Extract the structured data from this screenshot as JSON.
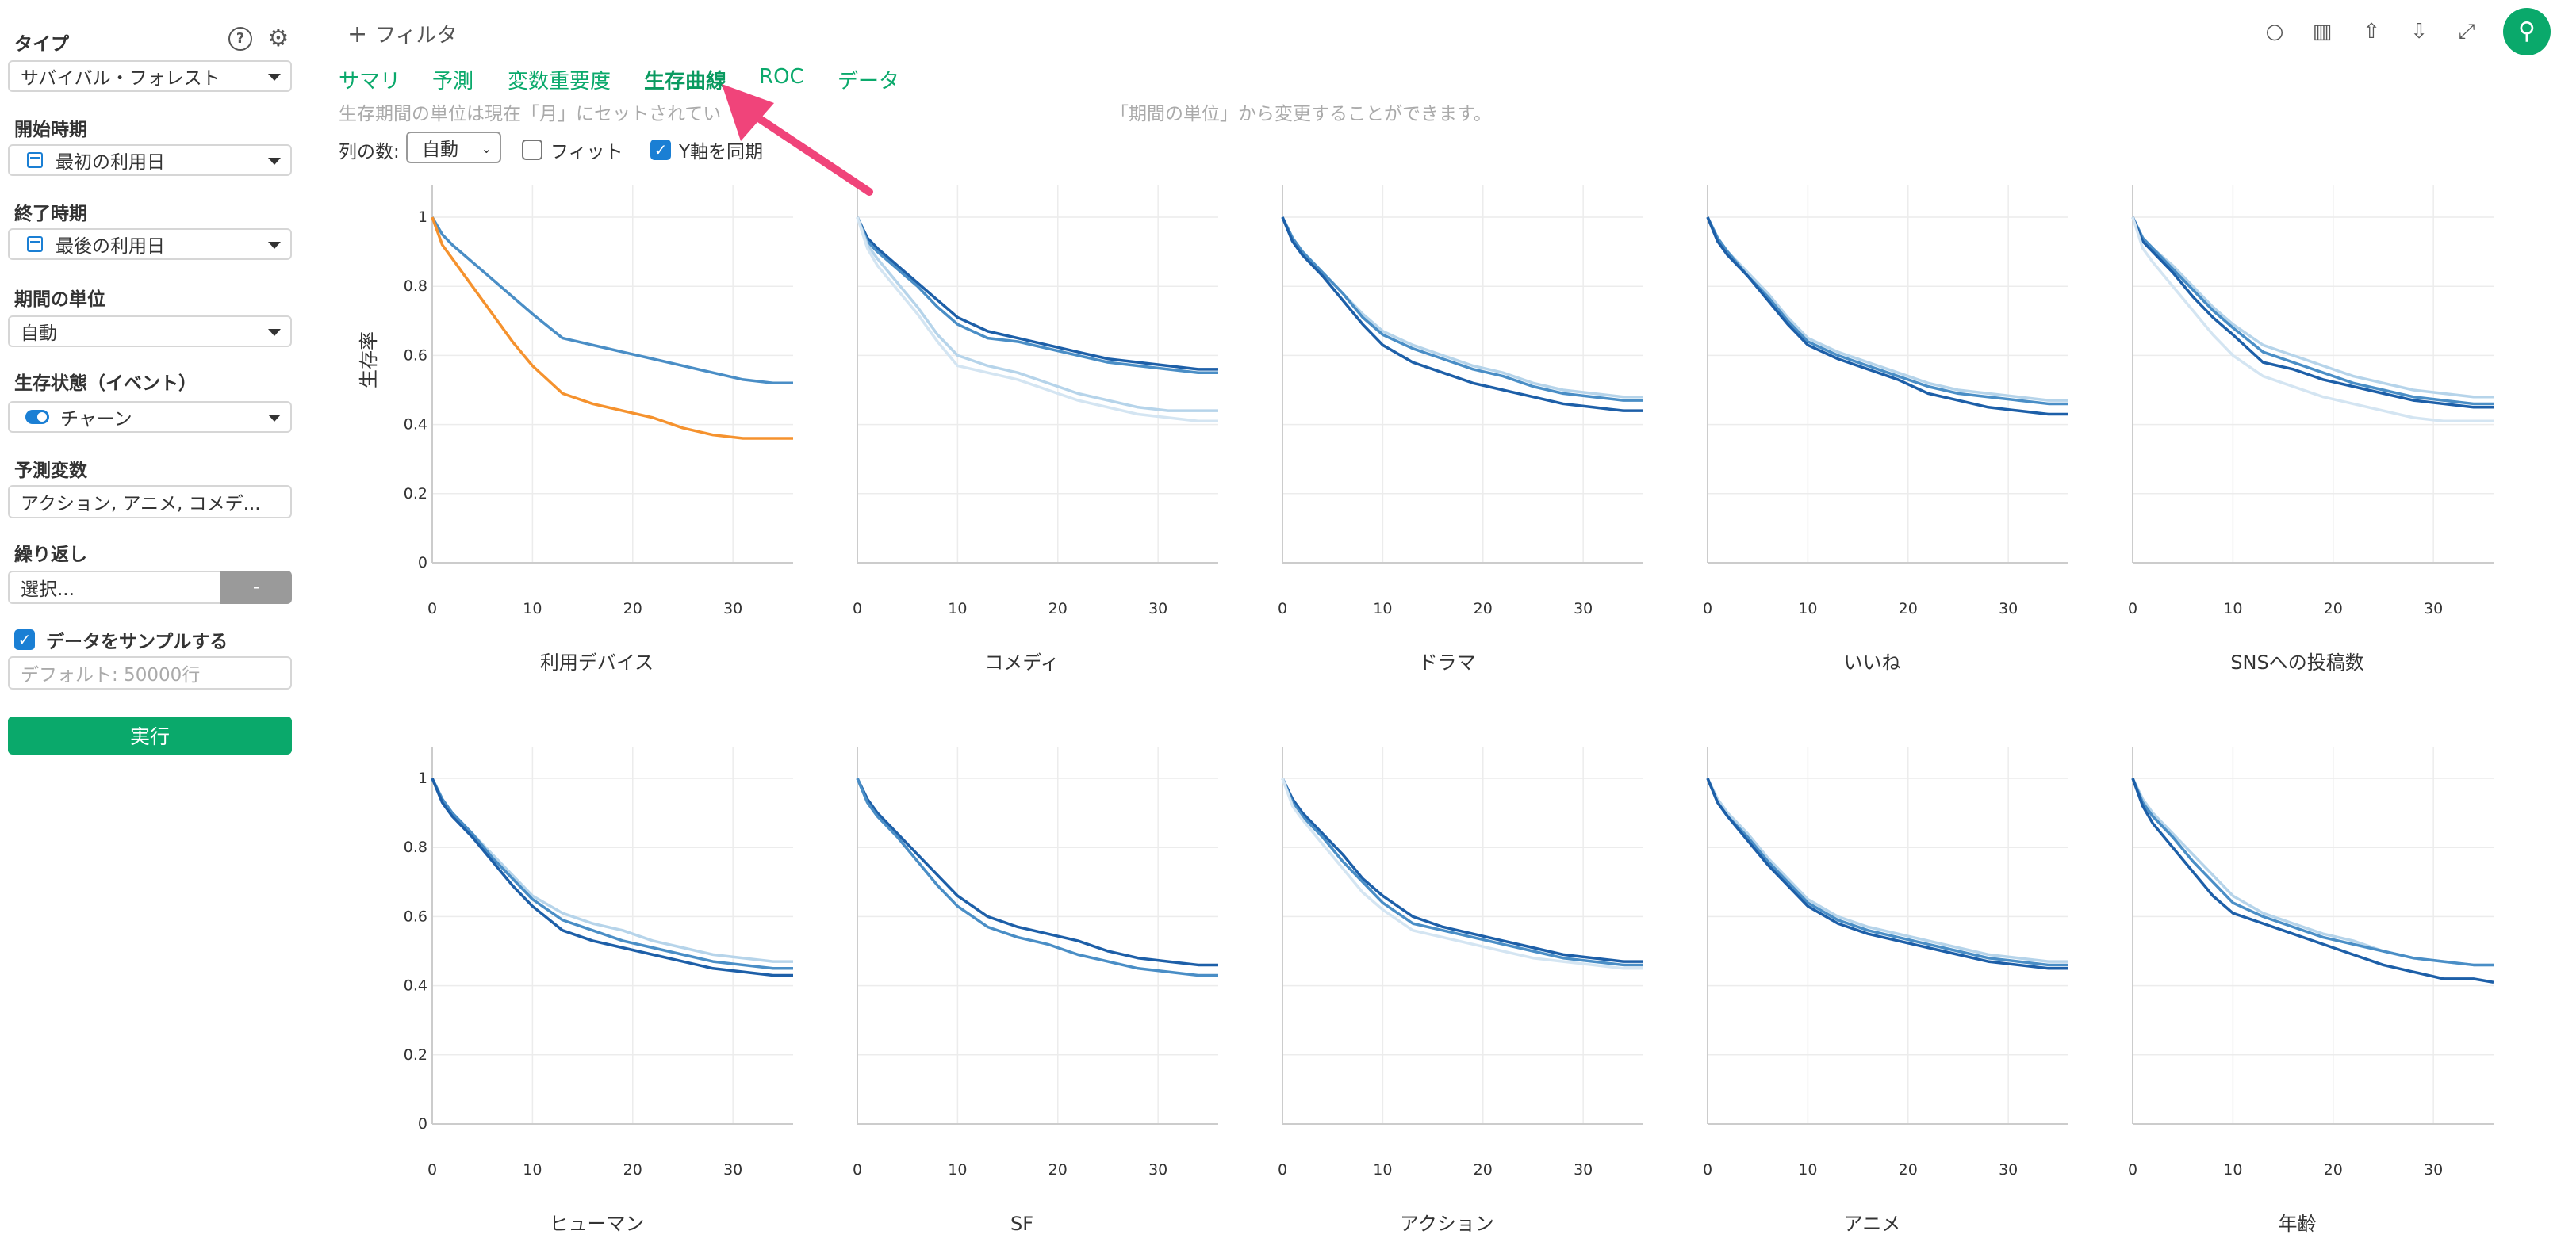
{
  "sidebar": {
    "type_label": "タイプ",
    "type_value": "サバイバル・フォレスト",
    "start_label": "開始時期",
    "start_value": "最初の利用日",
    "end_label": "終了時期",
    "end_value": "最後の利用日",
    "unit_label": "期間の単位",
    "unit_value": "自動",
    "status_label": "生存状態（イベント）",
    "status_value": "チャーン",
    "predictors_label": "予測変数",
    "predictors_value": "アクション, アニメ, コメデ...",
    "repeat_label": "繰り返し",
    "repeat_value": "選択...",
    "repeat_btn": "-",
    "sample_label": "データをサンプルする",
    "sample_placeholder": "デフォルト: 50000行",
    "run_label": "実行",
    "help_icon": "?",
    "gear_icon": "⚙"
  },
  "header": {
    "filter_label": "フィルタ",
    "filter_icon": "+"
  },
  "tabs": [
    "サマリ",
    "予測",
    "変数重要度",
    "生存曲線",
    "ROC",
    "データ"
  ],
  "active_tab": "生存曲線",
  "info_text": "生存期間の単位は現在「月」にセットされてい",
  "info_text2": "「期間の単位」から変更することができます。",
  "options": {
    "columns_label": "列の数:",
    "columns_value": "自動",
    "fit_label": "フィット",
    "sync_label": "Y軸を同期"
  },
  "ylabel": "生存率",
  "colors": {
    "accent": "#0aa96b",
    "pin": "#0aa96b",
    "arrow": "#f0447a",
    "blue_dark": "#1d5fa8",
    "blue_mid": "#4a8ec6",
    "blue_light": "#b6d4ea",
    "blue_lighter": "#d4e5f2",
    "orange": "#f5922e"
  },
  "chart_data": [
    {
      "type": "line",
      "title": "利用デバイス",
      "x": [
        0,
        1,
        2,
        4,
        6,
        8,
        10,
        13,
        16,
        19,
        22,
        25,
        28,
        31,
        34,
        36
      ],
      "xlim": [
        0,
        36
      ],
      "ylim": [
        0,
        1
      ],
      "xticks": [
        0,
        10,
        20,
        30
      ],
      "yticks": [
        0,
        0.2,
        0.4,
        0.6,
        0.8,
        1
      ],
      "series": [
        {
          "color": "#4a8ec6",
          "values": [
            1,
            0.95,
            0.92,
            0.87,
            0.82,
            0.77,
            0.72,
            0.65,
            0.63,
            0.61,
            0.59,
            0.57,
            0.55,
            0.53,
            0.52,
            0.52
          ]
        },
        {
          "color": "#f5922e",
          "values": [
            1,
            0.92,
            0.88,
            0.8,
            0.72,
            0.64,
            0.57,
            0.49,
            0.46,
            0.44,
            0.42,
            0.39,
            0.37,
            0.36,
            0.36,
            0.36
          ]
        }
      ]
    },
    {
      "type": "line",
      "title": "コメディ",
      "x": [
        0,
        1,
        2,
        4,
        6,
        8,
        10,
        13,
        16,
        19,
        22,
        25,
        28,
        31,
        34,
        36
      ],
      "xlim": [
        0,
        36
      ],
      "ylim": [
        0,
        1
      ],
      "xticks": [
        0,
        10,
        20,
        30
      ],
      "yticks": [
        0,
        0.2,
        0.4,
        0.6,
        0.8,
        1
      ],
      "series": [
        {
          "color": "#1d5fa8",
          "values": [
            1,
            0.94,
            0.91,
            0.86,
            0.81,
            0.76,
            0.71,
            0.67,
            0.65,
            0.63,
            0.61,
            0.59,
            0.58,
            0.57,
            0.56,
            0.56
          ]
        },
        {
          "color": "#4a8ec6",
          "values": [
            1,
            0.93,
            0.9,
            0.85,
            0.8,
            0.74,
            0.69,
            0.65,
            0.64,
            0.62,
            0.6,
            0.58,
            0.57,
            0.56,
            0.55,
            0.55
          ]
        },
        {
          "color": "#b6d4ea",
          "values": [
            1,
            0.92,
            0.88,
            0.81,
            0.74,
            0.66,
            0.6,
            0.57,
            0.55,
            0.52,
            0.49,
            0.47,
            0.45,
            0.44,
            0.44,
            0.44
          ]
        },
        {
          "color": "#d4e5f2",
          "values": [
            1,
            0.91,
            0.86,
            0.79,
            0.72,
            0.64,
            0.57,
            0.55,
            0.53,
            0.5,
            0.47,
            0.45,
            0.43,
            0.42,
            0.41,
            0.41
          ]
        }
      ]
    },
    {
      "type": "line",
      "title": "ドラマ",
      "x": [
        0,
        1,
        2,
        4,
        6,
        8,
        10,
        13,
        16,
        19,
        22,
        25,
        28,
        31,
        34,
        36
      ],
      "xlim": [
        0,
        36
      ],
      "ylim": [
        0,
        1
      ],
      "xticks": [
        0,
        10,
        20,
        30
      ],
      "yticks": [
        0,
        0.2,
        0.4,
        0.6,
        0.8,
        1
      ],
      "series": [
        {
          "color": "#b6d4ea",
          "values": [
            1,
            0.94,
            0.9,
            0.84,
            0.78,
            0.72,
            0.67,
            0.63,
            0.6,
            0.57,
            0.55,
            0.52,
            0.5,
            0.49,
            0.48,
            0.48
          ]
        },
        {
          "color": "#4a8ec6",
          "values": [
            1,
            0.94,
            0.9,
            0.84,
            0.78,
            0.71,
            0.66,
            0.62,
            0.59,
            0.56,
            0.54,
            0.51,
            0.49,
            0.48,
            0.47,
            0.47
          ]
        },
        {
          "color": "#1d5fa8",
          "values": [
            1,
            0.93,
            0.89,
            0.83,
            0.76,
            0.69,
            0.63,
            0.58,
            0.55,
            0.52,
            0.5,
            0.48,
            0.46,
            0.45,
            0.44,
            0.44
          ]
        }
      ]
    },
    {
      "type": "line",
      "title": "いいね",
      "x": [
        0,
        1,
        2,
        4,
        6,
        8,
        10,
        13,
        16,
        19,
        22,
        25,
        28,
        31,
        34,
        36
      ],
      "xlim": [
        0,
        36
      ],
      "ylim": [
        0,
        1
      ],
      "xticks": [
        0,
        10,
        20,
        30
      ],
      "yticks": [
        0,
        0.2,
        0.4,
        0.6,
        0.8,
        1
      ],
      "series": [
        {
          "color": "#b6d4ea",
          "values": [
            1,
            0.94,
            0.9,
            0.84,
            0.78,
            0.71,
            0.65,
            0.61,
            0.58,
            0.55,
            0.52,
            0.5,
            0.49,
            0.48,
            0.47,
            0.47
          ]
        },
        {
          "color": "#4a8ec6",
          "values": [
            1,
            0.94,
            0.9,
            0.83,
            0.77,
            0.7,
            0.64,
            0.6,
            0.57,
            0.54,
            0.51,
            0.49,
            0.48,
            0.47,
            0.46,
            0.46
          ]
        },
        {
          "color": "#1d5fa8",
          "values": [
            1,
            0.93,
            0.89,
            0.83,
            0.76,
            0.69,
            0.63,
            0.59,
            0.56,
            0.53,
            0.49,
            0.47,
            0.45,
            0.44,
            0.43,
            0.43
          ]
        }
      ]
    },
    {
      "type": "line",
      "title": "SNSへの投稿数",
      "x": [
        0,
        1,
        2,
        4,
        6,
        8,
        10,
        13,
        16,
        19,
        22,
        25,
        28,
        31,
        34,
        36
      ],
      "xlim": [
        0,
        36
      ],
      "ylim": [
        0,
        1
      ],
      "xticks": [
        0,
        10,
        20,
        30
      ],
      "yticks": [
        0,
        0.2,
        0.4,
        0.6,
        0.8,
        1
      ],
      "series": [
        {
          "color": "#b6d4ea",
          "values": [
            1,
            0.94,
            0.91,
            0.86,
            0.8,
            0.74,
            0.69,
            0.63,
            0.6,
            0.57,
            0.54,
            0.52,
            0.5,
            0.49,
            0.48,
            0.48
          ]
        },
        {
          "color": "#4a8ec6",
          "values": [
            1,
            0.94,
            0.91,
            0.85,
            0.79,
            0.73,
            0.68,
            0.61,
            0.58,
            0.55,
            0.52,
            0.5,
            0.48,
            0.47,
            0.46,
            0.46
          ]
        },
        {
          "color": "#1d5fa8",
          "values": [
            1,
            0.93,
            0.9,
            0.84,
            0.77,
            0.71,
            0.66,
            0.58,
            0.56,
            0.53,
            0.51,
            0.49,
            0.47,
            0.46,
            0.45,
            0.45
          ]
        },
        {
          "color": "#d4e5f2",
          "values": [
            1,
            0.91,
            0.87,
            0.8,
            0.73,
            0.66,
            0.6,
            0.54,
            0.51,
            0.48,
            0.46,
            0.44,
            0.42,
            0.41,
            0.41,
            0.41
          ]
        }
      ]
    },
    {
      "type": "line",
      "title": "ヒューマン",
      "x": [
        0,
        1,
        2,
        4,
        6,
        8,
        10,
        13,
        16,
        19,
        22,
        25,
        28,
        31,
        34,
        36
      ],
      "xlim": [
        0,
        36
      ],
      "ylim": [
        0,
        1
      ],
      "xticks": [
        0,
        10,
        20,
        30
      ],
      "yticks": [
        0,
        0.2,
        0.4,
        0.6,
        0.8,
        1
      ],
      "series": [
        {
          "color": "#b6d4ea",
          "values": [
            1,
            0.94,
            0.9,
            0.84,
            0.78,
            0.72,
            0.66,
            0.61,
            0.58,
            0.56,
            0.53,
            0.51,
            0.49,
            0.48,
            0.47,
            0.47
          ]
        },
        {
          "color": "#4a8ec6",
          "values": [
            1,
            0.94,
            0.9,
            0.84,
            0.77,
            0.71,
            0.65,
            0.59,
            0.56,
            0.53,
            0.51,
            0.49,
            0.47,
            0.46,
            0.45,
            0.45
          ]
        },
        {
          "color": "#1d5fa8",
          "values": [
            1,
            0.93,
            0.89,
            0.83,
            0.76,
            0.69,
            0.63,
            0.56,
            0.53,
            0.51,
            0.49,
            0.47,
            0.45,
            0.44,
            0.43,
            0.43
          ]
        }
      ]
    },
    {
      "type": "line",
      "title": "SF",
      "x": [
        0,
        1,
        2,
        4,
        6,
        8,
        10,
        13,
        16,
        19,
        22,
        25,
        28,
        31,
        34,
        36
      ],
      "xlim": [
        0,
        36
      ],
      "ylim": [
        0,
        1
      ],
      "xticks": [
        0,
        10,
        20,
        30
      ],
      "yticks": [
        0,
        0.2,
        0.4,
        0.6,
        0.8,
        1
      ],
      "series": [
        {
          "color": "#1d5fa8",
          "values": [
            1,
            0.94,
            0.9,
            0.84,
            0.78,
            0.72,
            0.66,
            0.6,
            0.57,
            0.55,
            0.53,
            0.5,
            0.48,
            0.47,
            0.46,
            0.46
          ]
        },
        {
          "color": "#4a8ec6",
          "values": [
            1,
            0.93,
            0.89,
            0.83,
            0.76,
            0.69,
            0.63,
            0.57,
            0.54,
            0.52,
            0.49,
            0.47,
            0.45,
            0.44,
            0.43,
            0.43
          ]
        }
      ]
    },
    {
      "type": "line",
      "title": "アクション",
      "x": [
        0,
        1,
        2,
        4,
        6,
        8,
        10,
        13,
        16,
        19,
        22,
        25,
        28,
        31,
        34,
        36
      ],
      "xlim": [
        0,
        36
      ],
      "ylim": [
        0,
        1
      ],
      "xticks": [
        0,
        10,
        20,
        30
      ],
      "yticks": [
        0,
        0.2,
        0.4,
        0.6,
        0.8,
        1
      ],
      "series": [
        {
          "color": "#1d5fa8",
          "values": [
            1,
            0.94,
            0.9,
            0.84,
            0.78,
            0.71,
            0.66,
            0.6,
            0.57,
            0.55,
            0.53,
            0.51,
            0.49,
            0.48,
            0.47,
            0.47
          ]
        },
        {
          "color": "#4a8ec6",
          "values": [
            1,
            0.93,
            0.89,
            0.83,
            0.76,
            0.7,
            0.64,
            0.58,
            0.56,
            0.54,
            0.52,
            0.5,
            0.48,
            0.47,
            0.46,
            0.46
          ]
        },
        {
          "color": "#d4e5f2",
          "values": [
            1,
            0.92,
            0.88,
            0.81,
            0.74,
            0.67,
            0.62,
            0.56,
            0.54,
            0.52,
            0.5,
            0.48,
            0.47,
            0.46,
            0.45,
            0.45
          ]
        }
      ]
    },
    {
      "type": "line",
      "title": "アニメ",
      "x": [
        0,
        1,
        2,
        4,
        6,
        8,
        10,
        13,
        16,
        19,
        22,
        25,
        28,
        31,
        34,
        36
      ],
      "xlim": [
        0,
        36
      ],
      "ylim": [
        0,
        1
      ],
      "xticks": [
        0,
        10,
        20,
        30
      ],
      "yticks": [
        0,
        0.2,
        0.4,
        0.6,
        0.8,
        1
      ],
      "series": [
        {
          "color": "#b6d4ea",
          "values": [
            1,
            0.94,
            0.9,
            0.84,
            0.77,
            0.71,
            0.65,
            0.6,
            0.57,
            0.55,
            0.53,
            0.51,
            0.49,
            0.48,
            0.47,
            0.47
          ]
        },
        {
          "color": "#4a8ec6",
          "values": [
            1,
            0.93,
            0.89,
            0.83,
            0.76,
            0.7,
            0.64,
            0.59,
            0.56,
            0.54,
            0.52,
            0.5,
            0.48,
            0.47,
            0.46,
            0.46
          ]
        },
        {
          "color": "#1d5fa8",
          "values": [
            1,
            0.93,
            0.89,
            0.82,
            0.75,
            0.69,
            0.63,
            0.58,
            0.55,
            0.53,
            0.51,
            0.49,
            0.47,
            0.46,
            0.45,
            0.45
          ]
        }
      ]
    },
    {
      "type": "line",
      "title": "年齢",
      "x": [
        0,
        1,
        2,
        4,
        6,
        8,
        10,
        13,
        16,
        19,
        22,
        25,
        28,
        31,
        34,
        36
      ],
      "xlim": [
        0,
        36
      ],
      "ylim": [
        0,
        1
      ],
      "xticks": [
        0,
        10,
        20,
        30
      ],
      "yticks": [
        0,
        0.2,
        0.4,
        0.6,
        0.8,
        1
      ],
      "series": [
        {
          "color": "#b6d4ea",
          "values": [
            1,
            0.94,
            0.9,
            0.84,
            0.78,
            0.72,
            0.66,
            0.61,
            0.58,
            0.55,
            0.53,
            0.5,
            0.48,
            0.47,
            0.46,
            0.46
          ]
        },
        {
          "color": "#4a8ec6",
          "values": [
            1,
            0.93,
            0.89,
            0.83,
            0.76,
            0.7,
            0.64,
            0.6,
            0.57,
            0.54,
            0.52,
            0.5,
            0.48,
            0.47,
            0.46,
            0.46
          ]
        },
        {
          "color": "#1d5fa8",
          "values": [
            1,
            0.92,
            0.87,
            0.8,
            0.73,
            0.66,
            0.61,
            0.58,
            0.55,
            0.52,
            0.49,
            0.46,
            0.44,
            0.42,
            0.42,
            0.41
          ]
        }
      ]
    }
  ]
}
